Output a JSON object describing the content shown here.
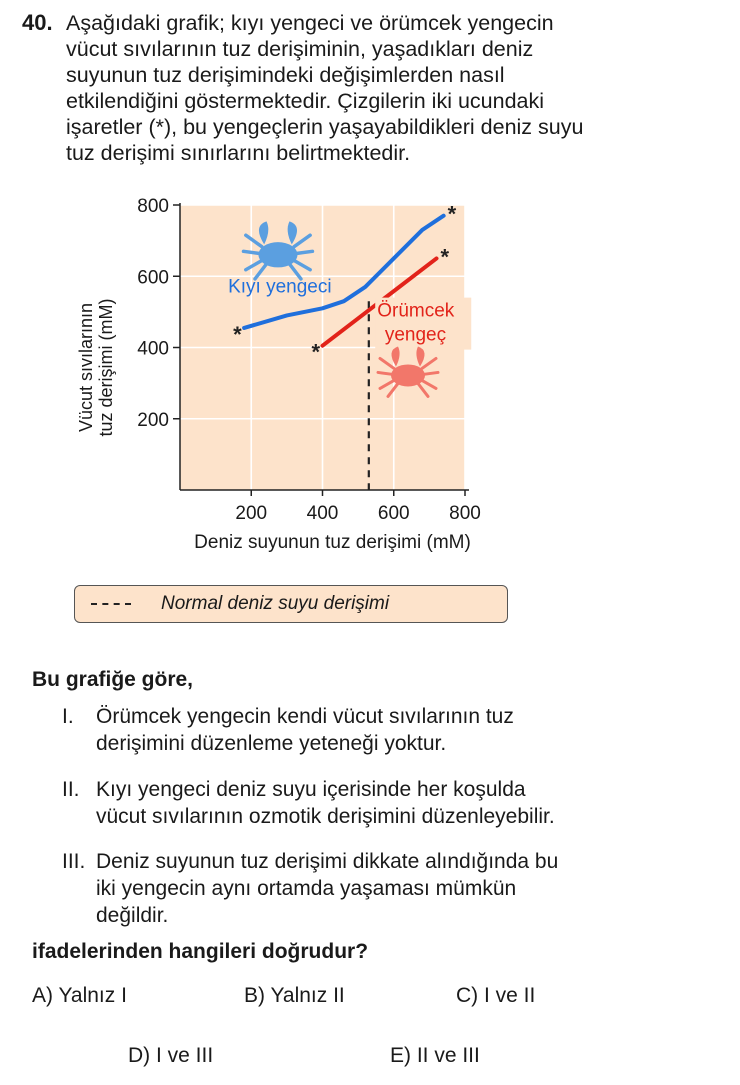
{
  "question": {
    "number": "40.",
    "stem_lines": [
      "Aşağıdaki grafik; kıyı yengeci ve örümcek yengecin",
      "vücut sıvılarının tuz derişiminin, yaşadıkları deniz",
      "suyunun tuz derişimindeki değişimlerden nasıl",
      "etkilendiğini göstermektedir. Çizgilerin iki ucundaki",
      "işaretler (*), bu yengeçlerin yaşayabildikleri deniz suyu",
      "tuz derişimi sınırlarını belirtmektedir."
    ]
  },
  "chart_data": {
    "type": "line",
    "xlabel": "Deniz suyunun tuz derişimi (mM)",
    "ylabel_lines": [
      "Vücut sıvılarının",
      "tuz derişimi (mM)"
    ],
    "x_ticks": [
      200,
      400,
      600,
      800
    ],
    "y_ticks": [
      200,
      400,
      600,
      800
    ],
    "xlim": [
      0,
      800
    ],
    "ylim": [
      0,
      800
    ],
    "grid": true,
    "background_color": "#fde3cb",
    "series": [
      {
        "name": "Kıyı yengeci",
        "color": "#1f6fdc",
        "points": [
          [
            180,
            455
          ],
          [
            300,
            490
          ],
          [
            400,
            510
          ],
          [
            460,
            530
          ],
          [
            520,
            570
          ],
          [
            600,
            650
          ],
          [
            680,
            730
          ],
          [
            740,
            770
          ]
        ]
      },
      {
        "name": "Örümcek yengeç",
        "color": "#e2231a",
        "points": [
          [
            400,
            405
          ],
          [
            720,
            650
          ]
        ]
      }
    ],
    "endpoint_marker": "*",
    "reference_line": {
      "x": 530,
      "y_from": 0,
      "y_to": 530,
      "style": "dashed",
      "color": "#222222"
    },
    "icons": [
      {
        "name": "blue-crab-icon",
        "color": "#5b9fe0"
      },
      {
        "name": "spider-crab-icon",
        "color": "#f2776a"
      }
    ]
  },
  "legend": {
    "dash": "- - -",
    "label": "Normal deniz suyu derişimi"
  },
  "prompt": "Bu grafiğe göre,",
  "statements": [
    {
      "roman": "I.",
      "lines": [
        "Örümcek yengecin kendi vücut sıvılarının tuz",
        "derişimini düzenleme yeteneği yoktur."
      ]
    },
    {
      "roman": "II.",
      "lines": [
        "Kıyı yengeci deniz suyu içerisinde her koşulda",
        "vücut sıvılarının ozmotik derişimini düzenleyebilir."
      ]
    },
    {
      "roman": "III.",
      "lines": [
        "Deniz suyunun tuz derişimi dikkate alındığında bu",
        "iki yengecin aynı ortamda yaşaması mümkün",
        "değildir."
      ]
    }
  ],
  "final_prompt": "ifadelerinden hangileri doğrudur?",
  "options": [
    {
      "label": "A) Yalnız I"
    },
    {
      "label": "B) Yalnız II"
    },
    {
      "label": "C) I ve II"
    },
    {
      "label": "D) I ve III"
    },
    {
      "label": "E) II ve III"
    }
  ]
}
